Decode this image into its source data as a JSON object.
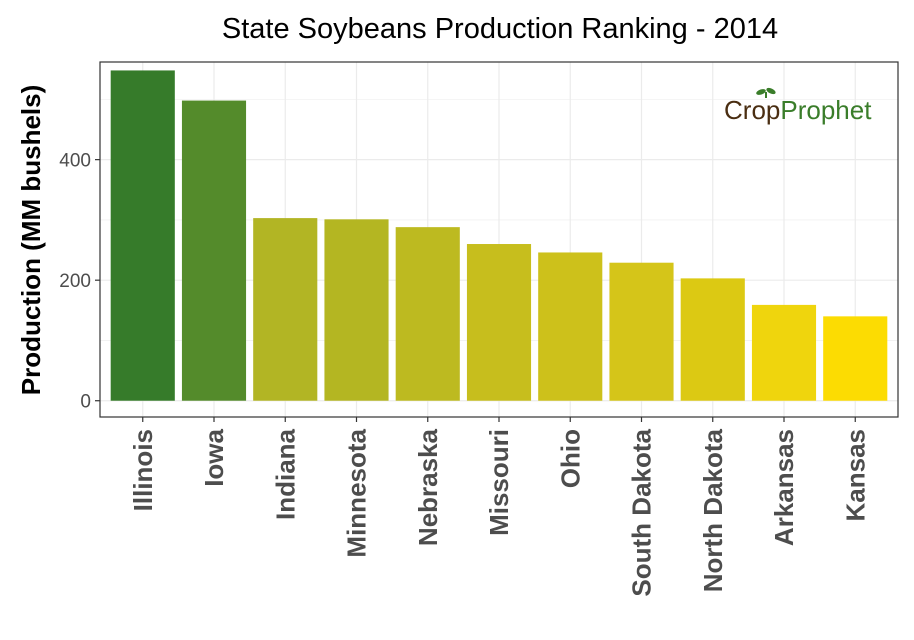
{
  "chart_data": {
    "type": "bar",
    "title": "State Soybeans Production Ranking - 2014",
    "xlabel": "",
    "ylabel": "Production (MM bushels)",
    "categories": [
      "Illinois",
      "Iowa",
      "Indiana",
      "Minnesota",
      "Nebraska",
      "Missouri",
      "Ohio",
      "South Dakota",
      "North Dakota",
      "Arkansas",
      "Kansas"
    ],
    "values": [
      548,
      498,
      303,
      301,
      288,
      260,
      246,
      229,
      203,
      159,
      140
    ],
    "bar_colors": [
      "#367b2a",
      "#548b2b",
      "#b2b524",
      "#b4b622",
      "#bdba20",
      "#c7be1d",
      "#cdc11b",
      "#d5c519",
      "#dcc913",
      "#efd50d",
      "#fcdc02"
    ],
    "ylim": [
      -27,
      562
    ],
    "yticks": [
      0,
      200,
      400
    ],
    "grid": true,
    "legend": "none"
  },
  "logo": {
    "part1": "Cr",
    "part2": "p",
    "part3": "Prophet",
    "color_dark": "#4a2e12",
    "color_green": "#3a7d2a"
  }
}
